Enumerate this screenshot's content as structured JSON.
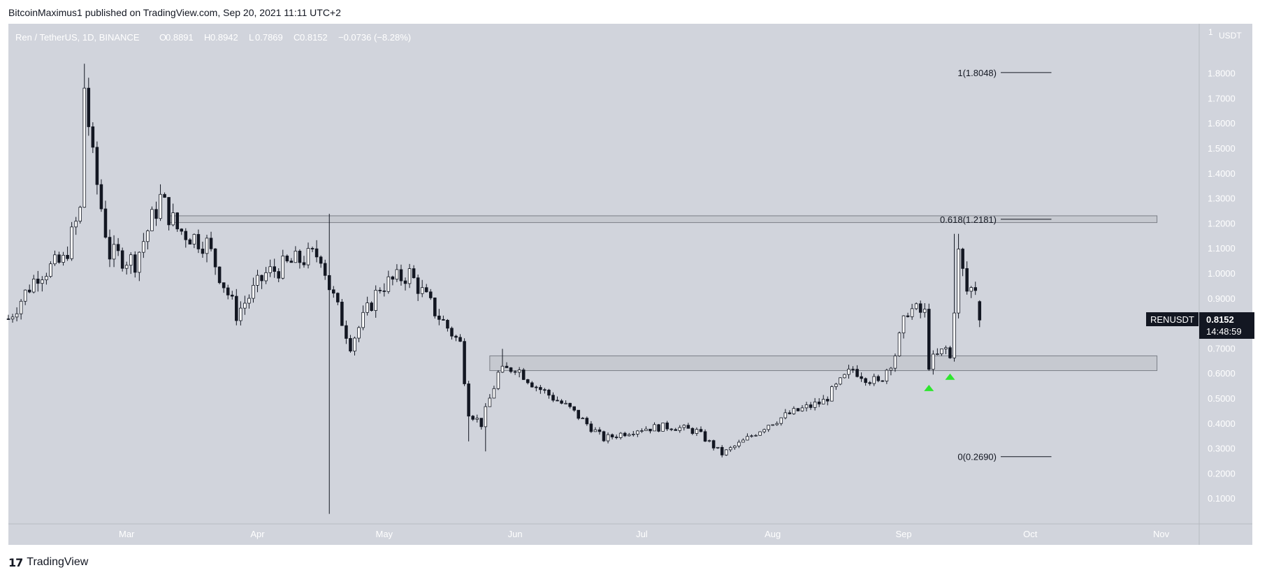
{
  "header": {
    "published_text": "BitcoinMaximus1 published on TradingView.com, Sep 20, 2021 11:11 UTC+2"
  },
  "legend": {
    "symbol": "Ren / TetherUS, 1D, BINANCE",
    "o_label": "O",
    "o_value": "0.8891",
    "h_label": "H",
    "h_value": "0.8942",
    "l_label": "L",
    "l_value": "0.7869",
    "c_label": "C",
    "c_value": "0.8152",
    "change": "−0.0736 (−8.28%)"
  },
  "price_axis": {
    "currency": "USDT",
    "tick_labels": [
      "0.1000",
      "0.2000",
      "0.3000",
      "0.4000",
      "0.5000",
      "0.6000",
      "0.7000",
      "0.8000",
      "0.9000",
      "1.0000",
      "1.1000",
      "1.2000",
      "1.3000",
      "1.4000",
      "1.5000",
      "1.6000",
      "1.7000",
      "1.8000"
    ]
  },
  "price_tag": {
    "symbol": "RENUSDT",
    "price": "0.8152",
    "countdown": "14:48:59"
  },
  "footer": {
    "brand": "TradingView",
    "logo_glyph": "17"
  },
  "colors": {
    "plot_bg": "#d1d4dc",
    "up_body": "#ffffff",
    "down_body": "#131722",
    "wick": "#131722",
    "zone_fill": "#c2c5cc",
    "zone_stroke": "#7b7f87",
    "arrow": "#2ee62e",
    "price_tag_bg": "#131722",
    "price_tag_text": "#ffffff"
  },
  "chart_data": {
    "type": "candlestick",
    "title": "Ren / TetherUS, 1D, BINANCE",
    "ylabel": "USDT",
    "y_range": [
      0.0,
      2.0
    ],
    "x_range": [
      "2021-02-01",
      "2021-11-10"
    ],
    "x_tick_labels": [
      {
        "date": "2021-03-01",
        "label": "Mar"
      },
      {
        "date": "2021-04-01",
        "label": "Apr"
      },
      {
        "date": "2021-05-01",
        "label": "May"
      },
      {
        "date": "2021-06-01",
        "label": "Jun"
      },
      {
        "date": "2021-07-01",
        "label": "Jul"
      },
      {
        "date": "2021-08-01",
        "label": "Aug"
      },
      {
        "date": "2021-09-01",
        "label": "Sep"
      },
      {
        "date": "2021-10-01",
        "label": "Oct"
      },
      {
        "date": "2021-11-01",
        "label": "Nov"
      }
    ],
    "last": {
      "open": 0.8891,
      "high": 0.8942,
      "low": 0.7869,
      "close": 0.8152,
      "change": -0.0736,
      "change_pct": -8.28
    },
    "fib_levels": [
      {
        "label": "1(1.8048)",
        "value": 1.8048,
        "date_from": "2021-09-24",
        "date_to": "2021-10-06"
      },
      {
        "label": "0.618(1.2181)",
        "value": 1.2181,
        "date_from": "2021-09-24",
        "date_to": "2021-10-06"
      },
      {
        "label": "0(0.2690)",
        "value": 0.269,
        "date_from": "2021-09-24",
        "date_to": "2021-10-06"
      }
    ],
    "zones": [
      {
        "from": 1.205,
        "to": 1.232,
        "date_from": "2021-03-11",
        "date_to": "2021-10-31"
      },
      {
        "from": 0.613,
        "to": 0.672,
        "date_from": "2021-05-26",
        "date_to": "2021-10-31"
      }
    ],
    "markers": [
      {
        "type": "up-arrow",
        "date": "2021-09-07",
        "value": 0.545
      },
      {
        "type": "up-arrow",
        "date": "2021-09-12",
        "value": 0.59
      }
    ],
    "anchors": [
      {
        "date": "2021-02-01",
        "value": 0.82
      },
      {
        "date": "2021-02-08",
        "value": 1.0
      },
      {
        "date": "2021-02-14",
        "value": 1.05
      },
      {
        "date": "2021-02-18",
        "value": 1.25
      },
      {
        "date": "2021-02-19",
        "value": 1.75
      },
      {
        "date": "2021-02-21",
        "value": 1.45
      },
      {
        "date": "2021-02-25",
        "value": 1.08
      },
      {
        "date": "2021-03-03",
        "value": 1.05
      },
      {
        "date": "2021-03-09",
        "value": 1.3
      },
      {
        "date": "2021-03-13",
        "value": 1.18
      },
      {
        "date": "2021-03-20",
        "value": 1.12
      },
      {
        "date": "2021-03-27",
        "value": 0.84
      },
      {
        "date": "2021-04-03",
        "value": 1.0
      },
      {
        "date": "2021-04-10",
        "value": 1.05
      },
      {
        "date": "2021-04-16",
        "value": 1.08
      },
      {
        "date": "2021-04-18",
        "value": 0.95
      },
      {
        "date": "2021-04-23",
        "value": 0.72
      },
      {
        "date": "2021-04-30",
        "value": 0.95
      },
      {
        "date": "2021-05-07",
        "value": 1.0
      },
      {
        "date": "2021-05-13",
        "value": 0.85
      },
      {
        "date": "2021-05-19",
        "value": 0.72
      },
      {
        "date": "2021-05-21",
        "value": 0.45
      },
      {
        "date": "2021-05-24",
        "value": 0.4
      },
      {
        "date": "2021-05-28",
        "value": 0.6
      },
      {
        "date": "2021-06-01",
        "value": 0.63
      },
      {
        "date": "2021-06-06",
        "value": 0.55
      },
      {
        "date": "2021-06-14",
        "value": 0.46
      },
      {
        "date": "2021-06-22",
        "value": 0.34
      },
      {
        "date": "2021-06-30",
        "value": 0.38
      },
      {
        "date": "2021-07-08",
        "value": 0.39
      },
      {
        "date": "2021-07-14",
        "value": 0.37
      },
      {
        "date": "2021-07-20",
        "value": 0.28
      },
      {
        "date": "2021-07-25",
        "value": 0.33
      },
      {
        "date": "2021-07-31",
        "value": 0.4
      },
      {
        "date": "2021-08-05",
        "value": 0.44
      },
      {
        "date": "2021-08-13",
        "value": 0.49
      },
      {
        "date": "2021-08-20",
        "value": 0.62
      },
      {
        "date": "2021-08-26",
        "value": 0.56
      },
      {
        "date": "2021-08-30",
        "value": 0.68
      },
      {
        "date": "2021-09-02",
        "value": 0.86
      },
      {
        "date": "2021-09-06",
        "value": 0.84
      },
      {
        "date": "2021-09-07",
        "value": 0.64
      },
      {
        "date": "2021-09-11",
        "value": 0.7
      },
      {
        "date": "2021-09-12",
        "value": 0.66
      },
      {
        "date": "2021-09-14",
        "value": 1.08
      },
      {
        "date": "2021-09-16",
        "value": 0.93
      },
      {
        "date": "2021-09-18",
        "value": 0.95
      },
      {
        "date": "2021-09-19",
        "value": 0.8891
      }
    ],
    "spikes": [
      {
        "date": "2021-02-19",
        "high": 1.84
      },
      {
        "date": "2021-04-18",
        "low": 0.04,
        "high": 1.24
      },
      {
        "date": "2021-05-21",
        "low": 0.33
      },
      {
        "date": "2021-05-25",
        "low": 0.29
      },
      {
        "date": "2021-05-29",
        "high": 0.7
      },
      {
        "date": "2021-09-13",
        "high": 1.16
      },
      {
        "date": "2021-09-14",
        "high": 1.16
      }
    ]
  }
}
